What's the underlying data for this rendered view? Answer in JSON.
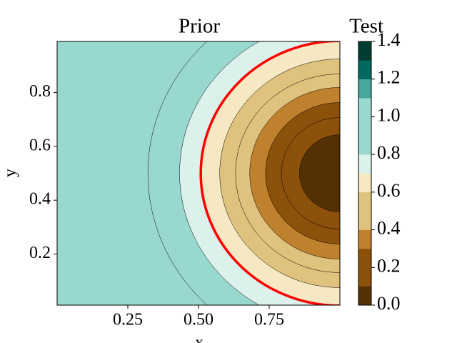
{
  "chart_data": {
    "type": "contour",
    "title": "Prior",
    "right_title": "Test",
    "xlabel": "x",
    "ylabel": "y",
    "xlim": [
      0,
      1
    ],
    "ylim": [
      0.01,
      0.99
    ],
    "xticks": [
      0.25,
      {
        "value": 0.5,
        "label": "0.50"
      },
      0.75
    ],
    "yticks": [
      0.2,
      0.4,
      0.6,
      0.8
    ],
    "center": [
      1.0,
      0.5
    ],
    "contours": [
      {
        "level": 0.1,
        "radius": 0.143
      },
      {
        "level": 0.2,
        "radius": 0.207
      },
      {
        "level": 0.3,
        "radius": 0.263
      },
      {
        "level": 0.4,
        "radius": 0.319
      },
      {
        "level": 0.5,
        "radius": 0.369
      },
      {
        "level": 0.6,
        "radius": 0.425
      },
      {
        "level": 0.7,
        "radius": 0.491
      },
      {
        "level": 0.8,
        "radius": 0.567
      },
      {
        "level": 0.9,
        "radius": 0.679
      }
    ],
    "highlight": {
      "radius": 0.492,
      "color": "#ff0000"
    },
    "levels": [
      0,
      0.1,
      0.2,
      0.3,
      0.4,
      0.5,
      0.6,
      0.7,
      0.8,
      0.9,
      1.0,
      1.1,
      1.2,
      1.3,
      1.4
    ],
    "colors": [
      "#543005",
      "#8c510a",
      "#8c510a",
      "#bf812d",
      "#dfc27d",
      "#dfc27d",
      "#f6e8c3",
      "#dcf0ec",
      "#99d8cf",
      "#99d8cf",
      "#99d8cf",
      "#48a69a",
      "#03695f",
      "#003c30"
    ],
    "clim": [
      0,
      1.4
    ],
    "cticks": [
      {
        "value": 0,
        "label": "0.0"
      },
      0.2,
      0.4,
      0.6,
      0.8,
      {
        "value": 1,
        "label": "1.0"
      },
      1.2,
      1.4
    ]
  }
}
